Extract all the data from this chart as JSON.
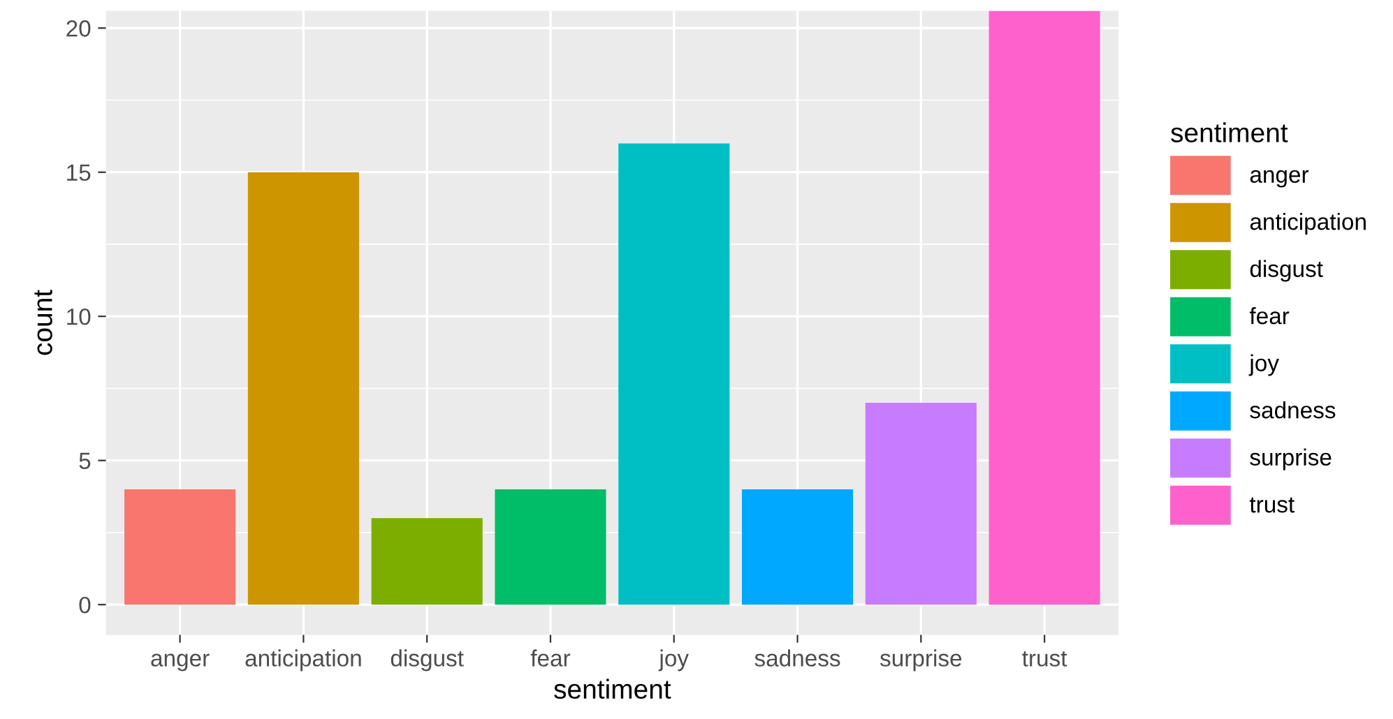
{
  "chart_data": {
    "type": "bar",
    "xlabel": "sentiment",
    "ylabel": "count",
    "legend_title": "sentiment",
    "categories": [
      "anger",
      "anticipation",
      "disgust",
      "fear",
      "joy",
      "sadness",
      "surprise",
      "trust"
    ],
    "series": [
      {
        "name": "anger",
        "color": "#f8766d",
        "values": [
          4,
          null,
          null,
          null,
          null,
          null,
          null,
          null
        ]
      },
      {
        "name": "anticipation",
        "color": "#cd9600",
        "values": [
          null,
          15,
          null,
          null,
          null,
          null,
          null,
          null
        ]
      },
      {
        "name": "disgust",
        "color": "#7cae00",
        "values": [
          null,
          null,
          3,
          null,
          null,
          null,
          null,
          null
        ]
      },
      {
        "name": "fear",
        "color": "#00be67",
        "values": [
          null,
          null,
          null,
          4,
          null,
          null,
          null,
          null
        ]
      },
      {
        "name": "joy",
        "color": "#00bfc4",
        "values": [
          null,
          null,
          null,
          null,
          16,
          null,
          null,
          null
        ]
      },
      {
        "name": "sadness",
        "color": "#00a9ff",
        "values": [
          null,
          null,
          null,
          null,
          null,
          4,
          null,
          null
        ]
      },
      {
        "name": "surprise",
        "color": "#c77cff",
        "values": [
          null,
          null,
          null,
          null,
          null,
          null,
          7,
          null
        ]
      },
      {
        "name": "trust",
        "color": "#ff61cc",
        "values": [
          null,
          null,
          null,
          null,
          null,
          null,
          null,
          20.6
        ]
      }
    ],
    "ylim": [
      -1.05,
      20.6
    ],
    "yticks": [
      0,
      5,
      10,
      15,
      20
    ],
    "grid": true,
    "legend": "right"
  }
}
